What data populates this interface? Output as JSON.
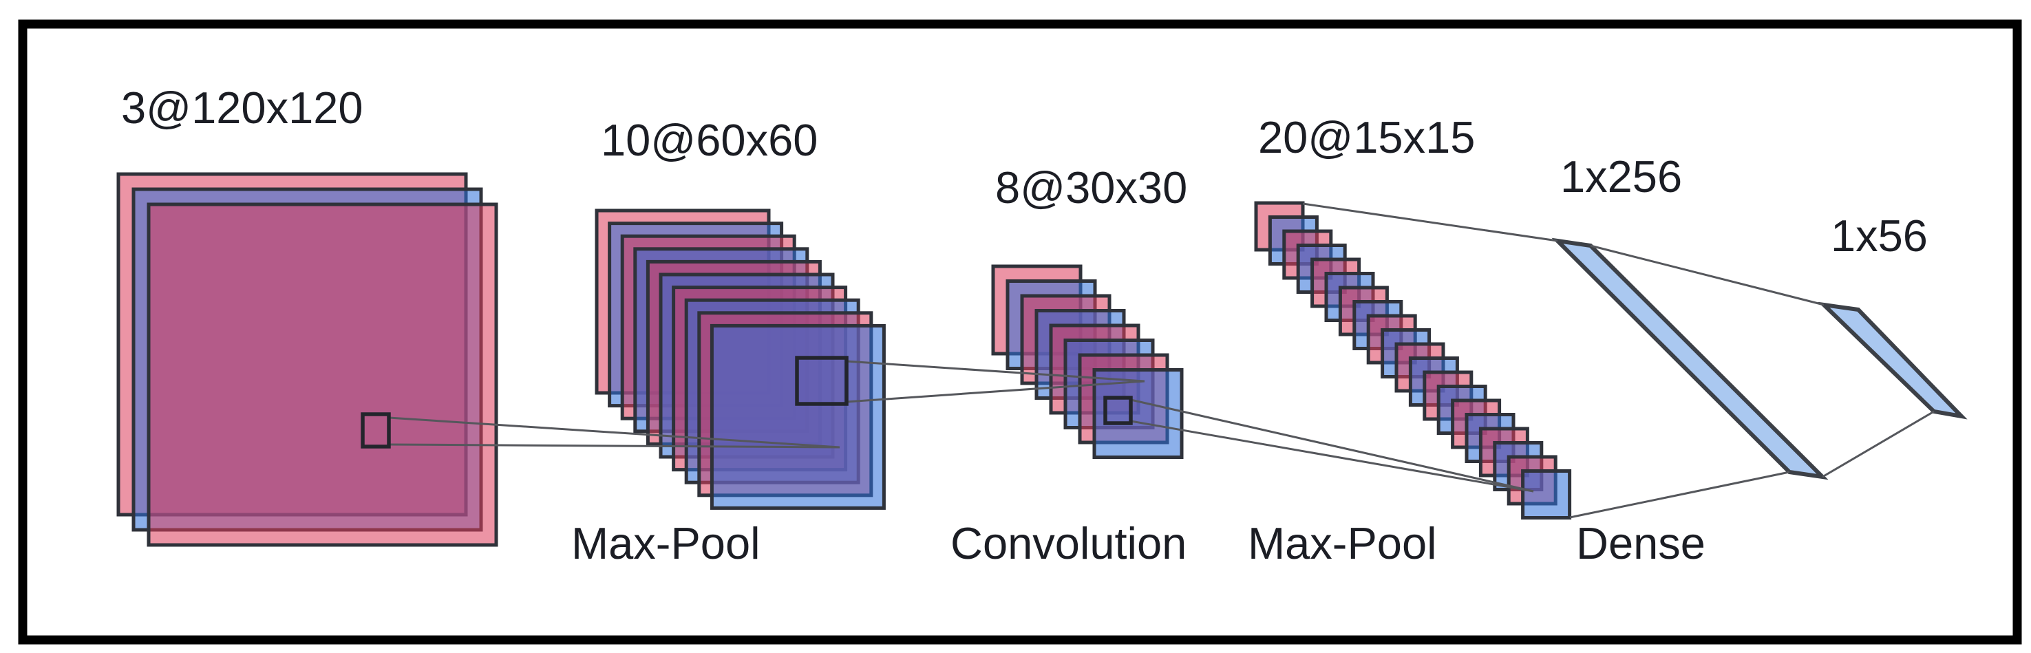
{
  "diagram": {
    "type": "cnn-architecture",
    "description": "Convolutional neural network architecture diagram with feature-map stacks, kernel windows and dense layers",
    "stacks": [
      {
        "id": "input",
        "size_label": "3@120x120",
        "num_feature_maps": 3,
        "map_size": "120x120"
      },
      {
        "id": "maxpool1",
        "size_label": "10@60x60",
        "num_feature_maps": 10,
        "map_size": "60x60",
        "op_label": "Max-Pool"
      },
      {
        "id": "conv",
        "size_label": "8@30x30",
        "num_feature_maps": 8,
        "map_size": "30x30",
        "op_label": "Convolution"
      },
      {
        "id": "maxpool2",
        "size_label": "20@15x15",
        "num_feature_maps": 20,
        "map_size": "15x15",
        "op_label": "Max-Pool"
      }
    ],
    "dense_bars": [
      {
        "id": "dense1",
        "size_label": "1x256",
        "units": 256,
        "op_label": "Dense"
      },
      {
        "id": "dense2",
        "size_label": "1x56",
        "units": 56
      }
    ],
    "colors": {
      "background": "#ffffff",
      "border": "#000000",
      "sheet_red": "#dd3d5b",
      "sheet_blue": "#2e6fd8",
      "sheet_opacity": "0.55",
      "sheet_outline": "#2f323a",
      "kernel_outline": "#23252c",
      "connection_line": "#55575c",
      "bar_fill": "#aac8f0",
      "bar_outline": "#3c4047",
      "label_text": "#1b1d24"
    }
  }
}
